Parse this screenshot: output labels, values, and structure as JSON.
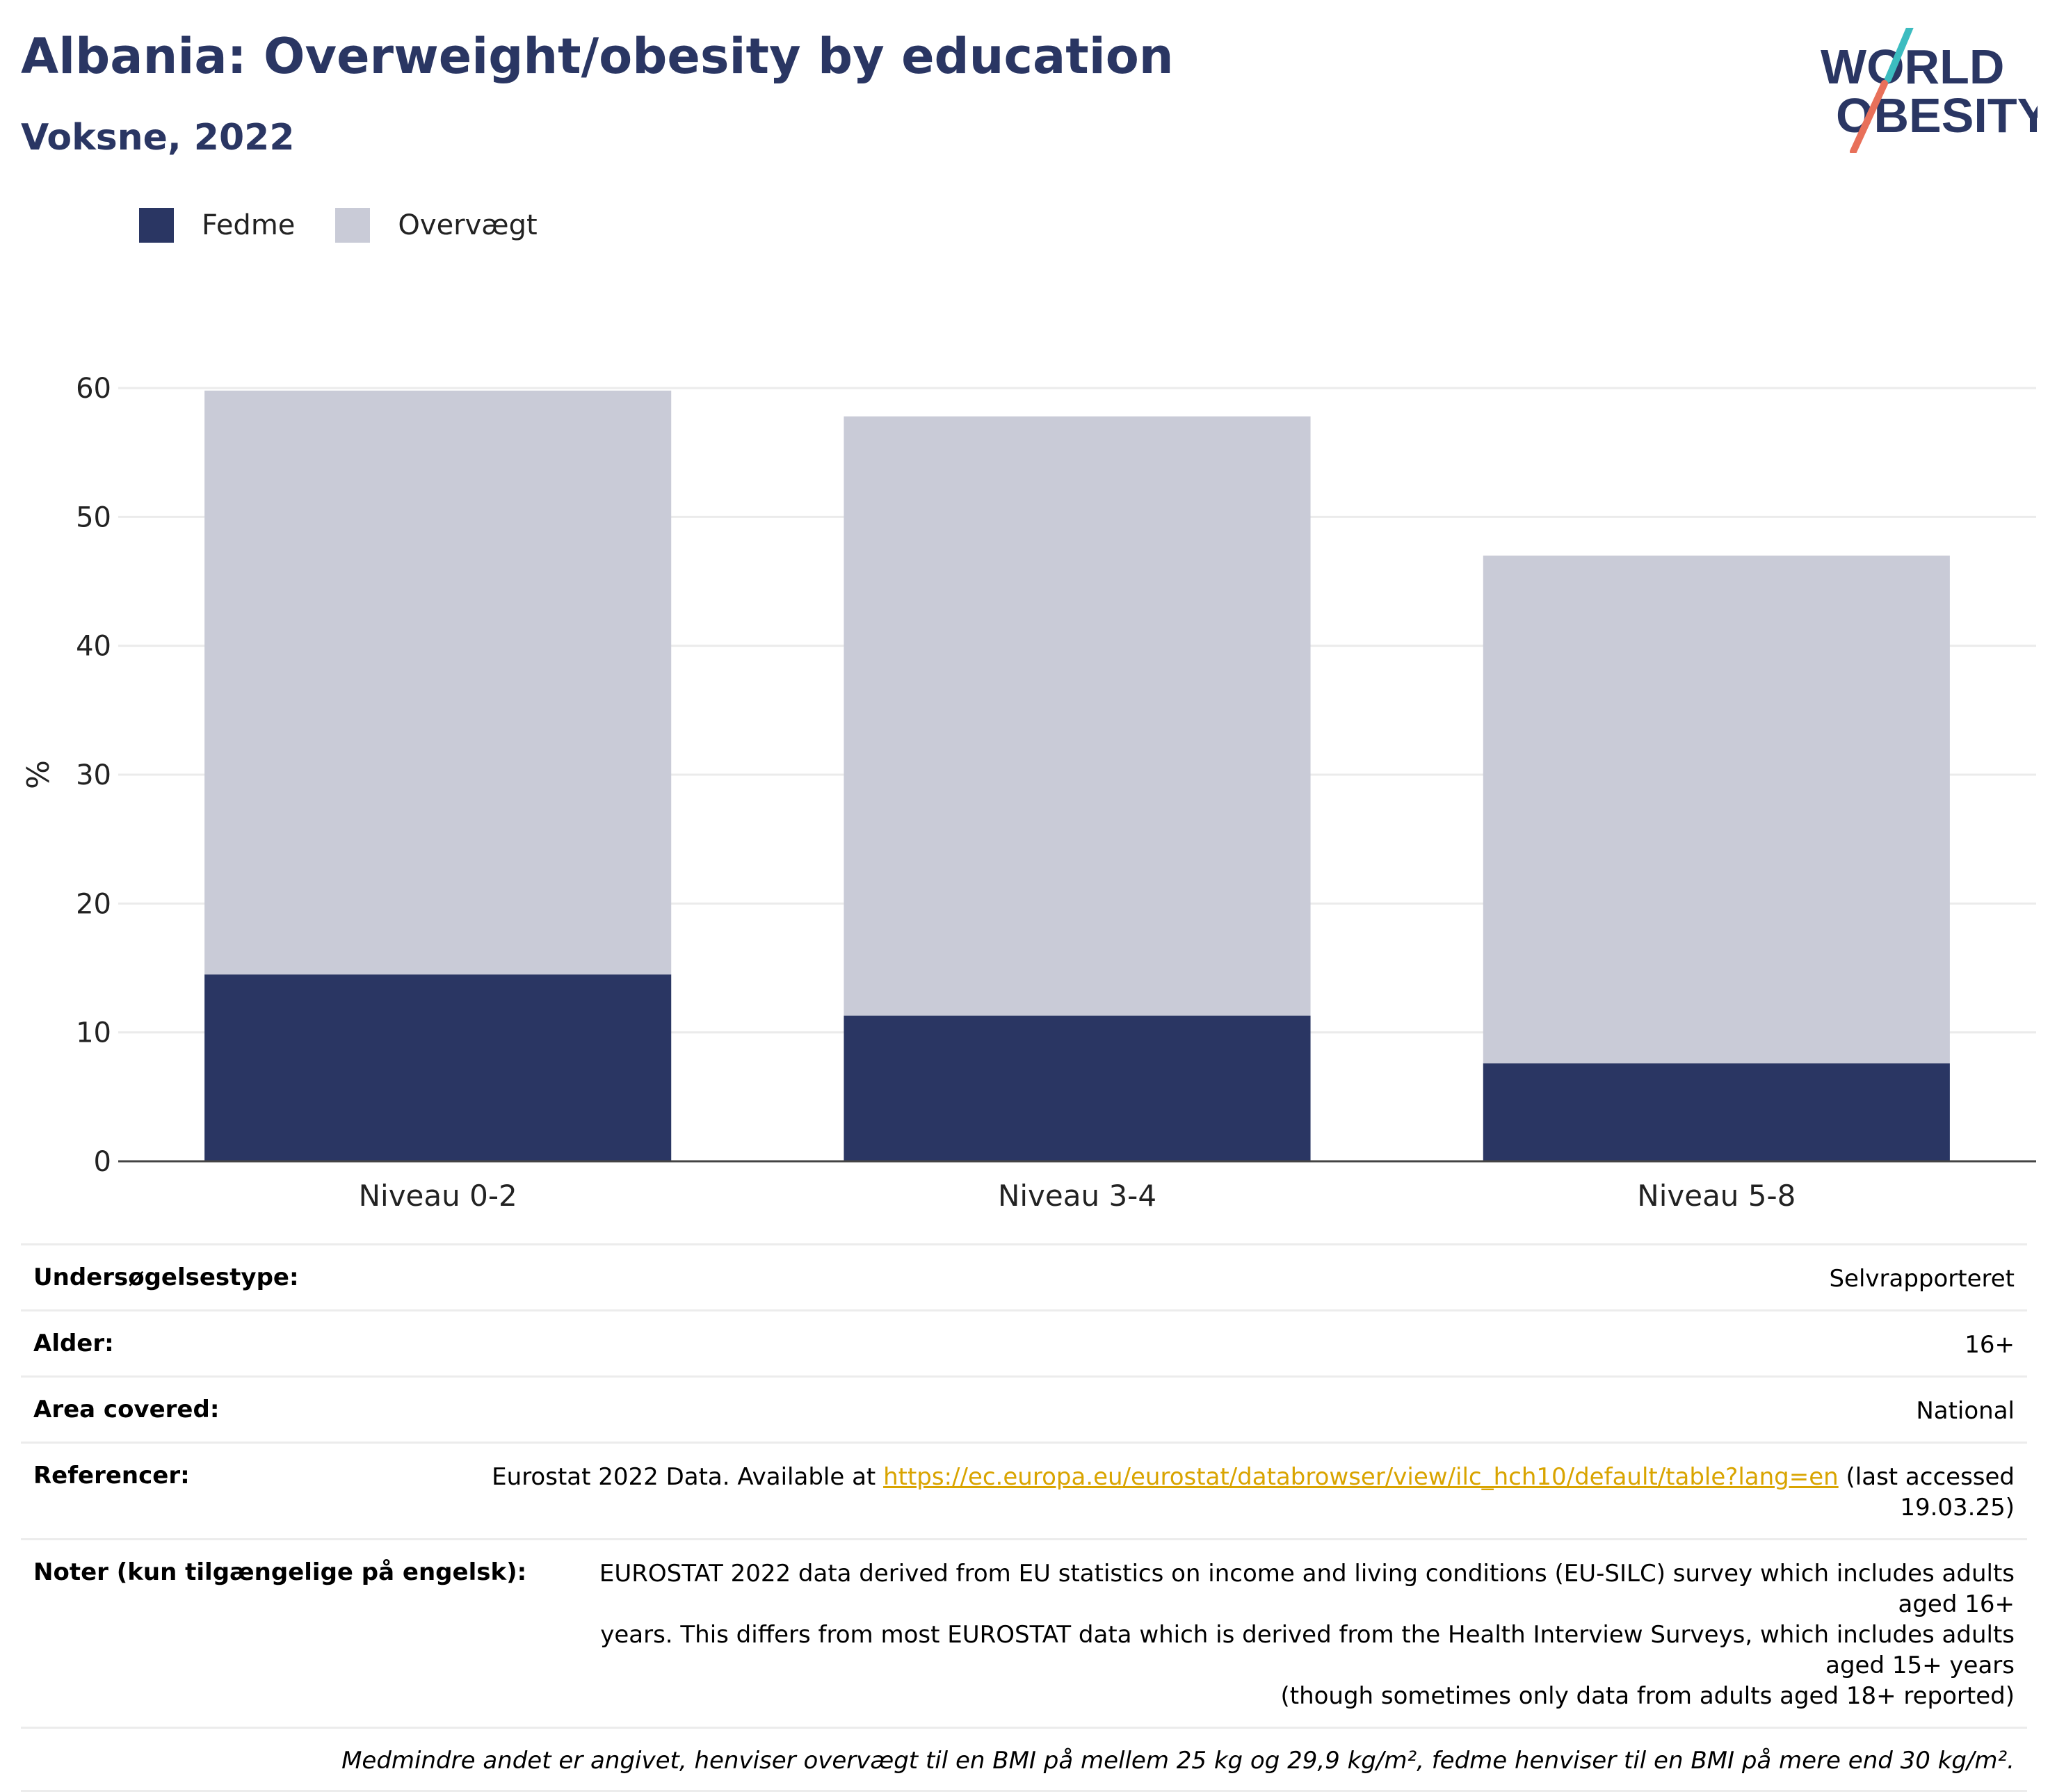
{
  "header": {
    "title": "Albania: Overweight/obesity by education",
    "subtitle": "Voksne, 2022",
    "logo_line1": "WORLD",
    "logo_line2": "OBESITY"
  },
  "colors": {
    "obesity": "#2a3663",
    "overweight": "#c9cbd7",
    "title": "#2a3663",
    "link": "#d9a400"
  },
  "chart_data": {
    "type": "bar",
    "stacked": true,
    "categories": [
      "Niveau 0-2",
      "Niveau 3-4",
      "Niveau 5-8"
    ],
    "series": [
      {
        "name": "Fedme",
        "values": [
          14.5,
          11.3,
          7.6
        ]
      },
      {
        "name": "Overvægt",
        "values": [
          45.3,
          46.5,
          39.4
        ]
      }
    ],
    "totals": [
      59.8,
      57.8,
      47.0
    ],
    "ylabel": "%",
    "xlabel": "",
    "ylim": [
      0,
      60
    ],
    "yticks": [
      0,
      10,
      20,
      30,
      40,
      50,
      60
    ],
    "grid": true,
    "legend_position": "top-left"
  },
  "info": {
    "survey_type": {
      "label": "Undersøgelsestype:",
      "value": "Selvrapporteret"
    },
    "age": {
      "label": "Alder:",
      "value": "16+"
    },
    "area": {
      "label": "Area covered:",
      "value": "National"
    },
    "references": {
      "label": "Referencer:",
      "prefix": "Eurostat 2022 Data. Available at ",
      "url": "https://ec.europa.eu/eurostat/databrowser/view/ilc_hch10/default/table?lang=en",
      "suffix_line1": " (last accessed",
      "suffix_line2": "19.03.25)"
    },
    "notes": {
      "label": "Noter (kun tilgængelige på engelsk):",
      "line1": "EUROSTAT 2022 data derived from EU statistics on income and living conditions (EU-SILC) survey which includes adults aged 16+",
      "line2": "years. This differs from most EUROSTAT data which is derived from the Health Interview Surveys, which includes adults aged 15+ years",
      "line3": "(though sometimes only data from adults aged 18+ reported)"
    },
    "footnote": "Medmindre andet er angivet, henviser overvægt til en BMI på mellem 25 kg og 29,9 kg/m², fedme henviser til en BMI på mere end 30 kg/m²."
  }
}
